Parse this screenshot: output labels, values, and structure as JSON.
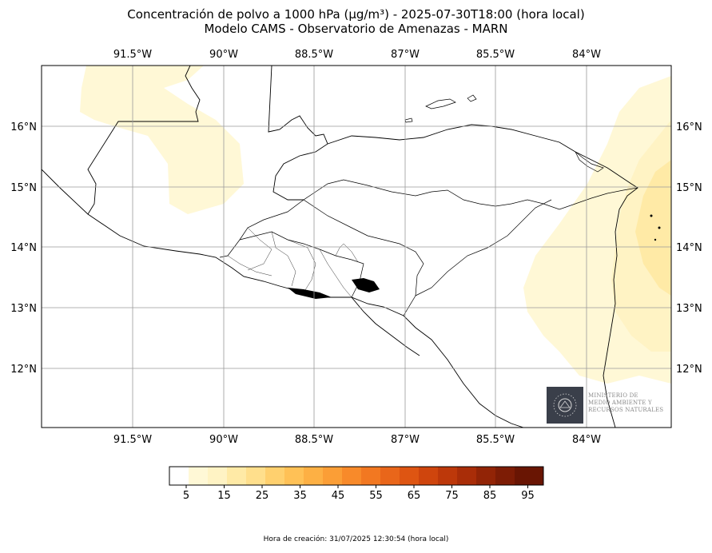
{
  "title": "Concentración de polvo a 1000 hPa (µg/m³) - 2025-07-30T18:00 (hora local)",
  "subtitle": "Modelo CAMS - Observatorio de Amenazas - MARN",
  "map": {
    "lon_ticks": [
      "91.5°W",
      "90°W",
      "88.5°W",
      "87°W",
      "85.5°W",
      "84°W"
    ],
    "lat_ticks": [
      "16°N",
      "15°N",
      "14°N",
      "13°N",
      "12°N"
    ]
  },
  "colorbar": {
    "tick_labels": [
      "5",
      "15",
      "25",
      "35",
      "45",
      "55",
      "65",
      "75",
      "85",
      "95"
    ],
    "colors": [
      "#ffffff",
      "#fff8d6",
      "#fff3c4",
      "#ffeaa6",
      "#ffdf8c",
      "#ffd06e",
      "#ffc156",
      "#fdb044",
      "#fb9e36",
      "#f88a2a",
      "#f27821",
      "#e9661a",
      "#de5512",
      "#cf450d",
      "#bd380a",
      "#a92d08",
      "#922406",
      "#7d1c05",
      "#691503"
    ]
  },
  "logo": {
    "line1": "MINISTERIO DE",
    "line2": "MEDIO AMBIENTE Y",
    "line3": "RECURSOS NATURALES"
  },
  "footer": "Hora de creación: 31/07/2025 12:30:54 (hora local)"
}
